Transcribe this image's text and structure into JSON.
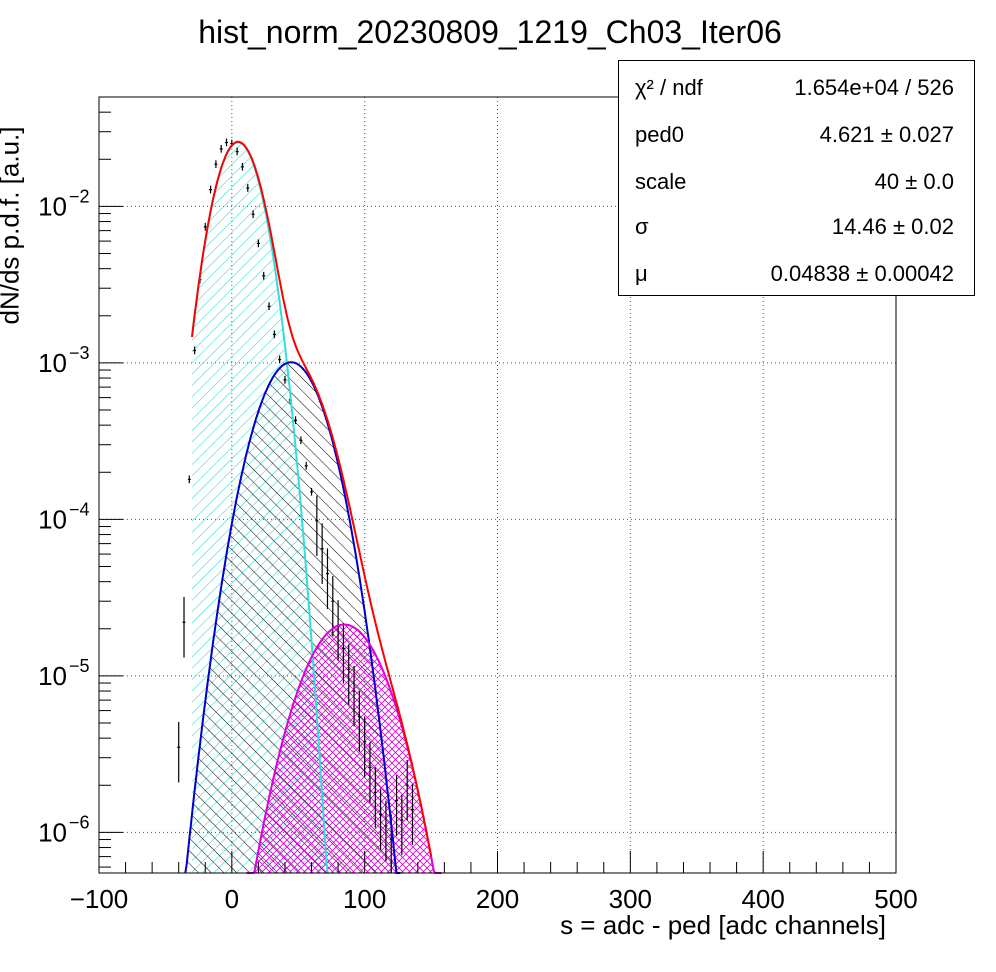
{
  "chart_data": {
    "type": "line",
    "title": "hist_norm_20230809_1219_Ch03_Iter06",
    "xlabel": "s = adc - ped [adc channels]",
    "ylabel": "dN/ds p.d.f. [a.u.]",
    "xlim": [
      -100,
      500
    ],
    "ylim": [
      5.5e-07,
      0.05
    ],
    "yscale": "log",
    "grid": true,
    "x_ticks": [
      "−100",
      "0",
      "100",
      "200",
      "300",
      "400",
      "500"
    ],
    "y_ticks": [
      {
        "base": "10",
        "exp": "−6",
        "value": 1e-06
      },
      {
        "base": "10",
        "exp": "−5",
        "value": 1e-05
      },
      {
        "base": "10",
        "exp": "−4",
        "value": 0.0001
      },
      {
        "base": "10",
        "exp": "−3",
        "value": 0.001
      },
      {
        "base": "10",
        "exp": "−2",
        "value": 0.01
      }
    ],
    "series": [
      {
        "role": "data",
        "color": "#000000",
        "x": [
          -40,
          -36,
          -32,
          -28,
          -24,
          -20,
          -16,
          -12,
          -8,
          -4,
          0,
          4,
          8,
          12,
          16,
          20,
          24,
          28,
          32,
          36,
          40,
          44,
          48,
          52,
          56,
          60,
          64,
          68,
          72,
          76,
          80,
          84,
          88,
          92,
          96,
          100,
          104,
          108,
          112,
          116,
          120,
          124,
          128,
          132,
          136
        ],
        "y": [
          3.5e-06,
          2.2e-05,
          0.00018,
          0.0012,
          0.0034,
          0.0074,
          0.0128,
          0.0186,
          0.0233,
          0.0256,
          0.0252,
          0.0224,
          0.0179,
          0.0131,
          0.0089,
          0.0058,
          0.0036,
          0.0023,
          0.00152,
          0.00105,
          0.00078,
          0.00058,
          0.00043,
          0.00032,
          0.00022,
          0.00015,
          9.8e-05,
          6.5e-05,
          4.5e-05,
          3e-05,
          2.1e-05,
          1.5e-05,
          1.1e-05,
          8e-06,
          5.5e-06,
          3.8e-06,
          2.6e-06,
          1.8e-06,
          1.3e-06,
          1.1e-06,
          9e-07,
          1.6e-06,
          1.2e-06,
          2e-06,
          1.4e-06
        ]
      },
      {
        "role": "total-fit",
        "color": "#ff0000"
      },
      {
        "role": "pedestal-component",
        "color": "#33dddd",
        "mean": 4.621,
        "sigma": 14.46,
        "amplitude": 0.0257
      },
      {
        "role": "one-pe-component",
        "color": "#0000cc",
        "mean": 44.6,
        "sigma": 20.45,
        "amplitude": 0.00101
      },
      {
        "role": "two-pe-component",
        "color": "#dd00dd",
        "mean": 84.6,
        "sigma": 25.04,
        "amplitude": 2.13e-05
      }
    ]
  },
  "stats": {
    "rows": [
      {
        "name": "χ² / ndf",
        "value": "1.654e+04 / 526"
      },
      {
        "name": "ped0",
        "value": "4.621 ± 0.027"
      },
      {
        "name": "scale",
        "value": "40  ± 0.0"
      },
      {
        "name": "σ",
        "value": "14.46  ± 0.02"
      },
      {
        "name": "μ",
        "value": "0.04838  ± 0.00042"
      }
    ]
  }
}
